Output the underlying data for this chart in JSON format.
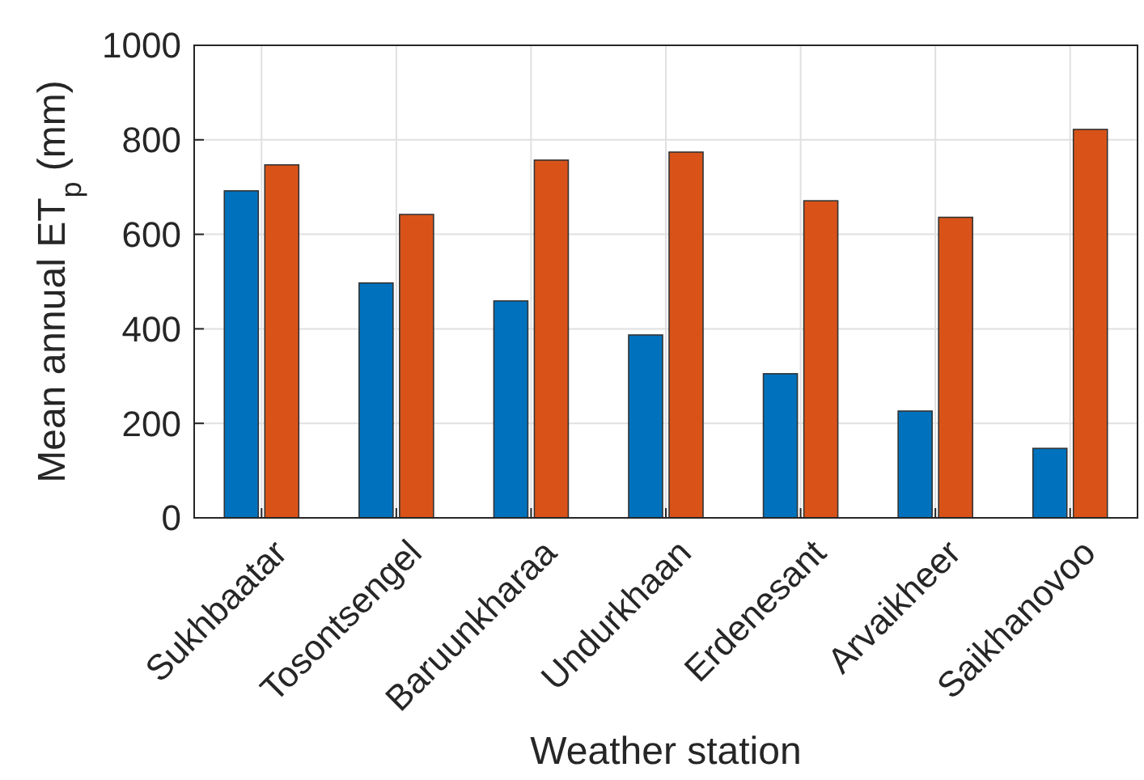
{
  "chart_data": {
    "type": "bar",
    "xlabel": "Weather station",
    "ylabel": "Mean annual ET$_{p}$ (mm)",
    "categories": [
      "Sukhbaatar",
      "Tosontsengel",
      "Baruunkharaa",
      "Undurkhaan",
      "Erdenesant",
      "Arvaikheer",
      "Saikhanovoo"
    ],
    "series": [
      {
        "color": "#0072bd",
        "values": [
          692,
          497,
          459,
          387,
          305,
          226,
          147
        ]
      },
      {
        "color": "#d95319",
        "values": [
          747,
          642,
          757,
          774,
          671,
          636,
          822
        ]
      }
    ],
    "ylim": [
      0,
      1000
    ],
    "yticks": [
      0,
      200,
      400,
      600,
      800,
      1000
    ],
    "grid": true
  }
}
